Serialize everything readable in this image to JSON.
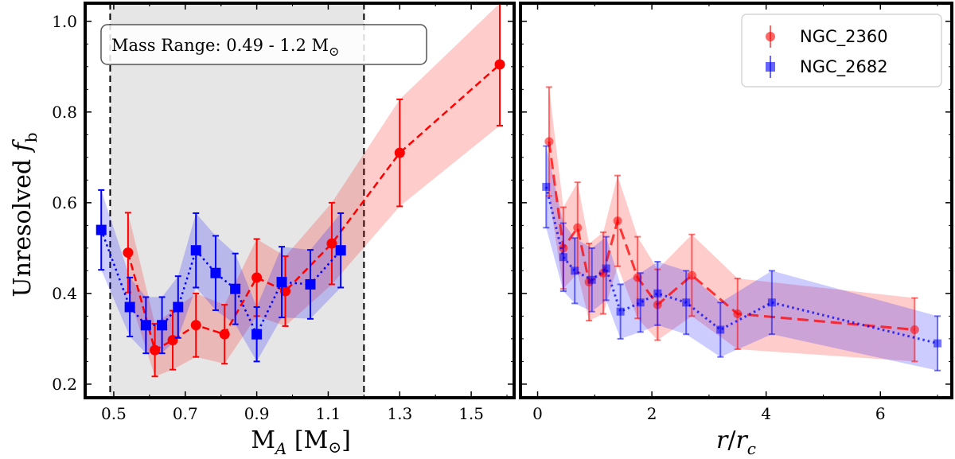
{
  "chart_data": [
    {
      "type": "line",
      "panel": "left",
      "xlabel": "M_A [M_sun]",
      "xlabel_main": "M",
      "xlabel_sub": "A",
      "xlabel_rest": "[M",
      "xlabel_close": "]",
      "ylabel": "Unresolved f_b",
      "ylabel_main": "Unresolved ",
      "ylabel_f": "f",
      "ylabel_sub": "b",
      "xlim": [
        0.42,
        1.62
      ],
      "ylim": [
        0.17,
        1.04
      ],
      "xticks": [
        0.5,
        0.7,
        0.9,
        1.1,
        1.3,
        1.5
      ],
      "xtick_labels": [
        "0.5",
        "0.7",
        "0.9",
        "1.1",
        "1.3",
        "1.5"
      ],
      "yticks": [
        0.2,
        0.4,
        0.6,
        0.8,
        1.0
      ],
      "ytick_labels": [
        "0.2",
        "0.4",
        "0.6",
        "0.8",
        "1.0"
      ],
      "mass_range": [
        0.49,
        1.2
      ],
      "annotation": "Mass Range: 0.49 - 1.2 M",
      "series": [
        {
          "name": "NGC_2360",
          "color": "#ff0000",
          "marker": "circle",
          "x": [
            0.54,
            0.615,
            0.665,
            0.73,
            0.81,
            0.9,
            0.98,
            1.11,
            1.3,
            1.58
          ],
          "y": [
            0.49,
            0.275,
            0.297,
            0.33,
            0.31,
            0.435,
            0.405,
            0.51,
            0.71,
            0.905
          ],
          "err": [
            0.088,
            0.058,
            0.065,
            0.07,
            0.065,
            0.085,
            0.077,
            0.09,
            0.118,
            0.135
          ]
        },
        {
          "name": "NGC_2682",
          "color": "#0000ff",
          "marker": "square",
          "x": [
            0.465,
            0.545,
            0.59,
            0.635,
            0.68,
            0.73,
            0.785,
            0.84,
            0.9,
            0.97,
            1.05,
            1.135
          ],
          "y": [
            0.54,
            0.37,
            0.33,
            0.33,
            0.37,
            0.495,
            0.445,
            0.41,
            0.31,
            0.425,
            0.42,
            0.495
          ],
          "err": [
            0.088,
            0.065,
            0.062,
            0.062,
            0.068,
            0.082,
            0.082,
            0.078,
            0.06,
            0.078,
            0.076,
            0.082
          ]
        }
      ]
    },
    {
      "type": "line",
      "panel": "right",
      "xlabel": "r/r_c",
      "xlabel_r": "r",
      "xlabel_slash": "/",
      "xlabel_sub": "c",
      "xlim": [
        -0.3,
        7.25
      ],
      "ylim": [
        0.17,
        1.04
      ],
      "xticks": [
        0,
        2,
        4,
        6
      ],
      "xtick_labels": [
        "0",
        "2",
        "4",
        "6"
      ],
      "legend": [
        "NGC_2360",
        "NGC_2682"
      ],
      "series": [
        {
          "name": "NGC_2360",
          "color": "#ff0000",
          "marker": "circle",
          "x": [
            0.2,
            0.45,
            0.7,
            0.9,
            1.15,
            1.4,
            1.75,
            2.1,
            2.7,
            3.5,
            6.6
          ],
          "y": [
            0.735,
            0.5,
            0.545,
            0.425,
            0.445,
            0.56,
            0.435,
            0.375,
            0.44,
            0.355,
            0.32
          ],
          "err": [
            0.12,
            0.09,
            0.1,
            0.085,
            0.09,
            0.1,
            0.09,
            0.078,
            0.09,
            0.078,
            0.07
          ]
        },
        {
          "name": "NGC_2682",
          "color": "#0000ff",
          "marker": "square",
          "x": [
            0.15,
            0.45,
            0.65,
            0.95,
            1.2,
            1.45,
            1.8,
            2.1,
            2.6,
            3.2,
            4.1,
            7.0
          ],
          "y": [
            0.635,
            0.48,
            0.45,
            0.43,
            0.455,
            0.36,
            0.38,
            0.4,
            0.38,
            0.32,
            0.38,
            0.29
          ],
          "err": [
            0.09,
            0.075,
            0.072,
            0.07,
            0.07,
            0.06,
            0.065,
            0.07,
            0.07,
            0.06,
            0.07,
            0.06
          ]
        }
      ]
    }
  ]
}
